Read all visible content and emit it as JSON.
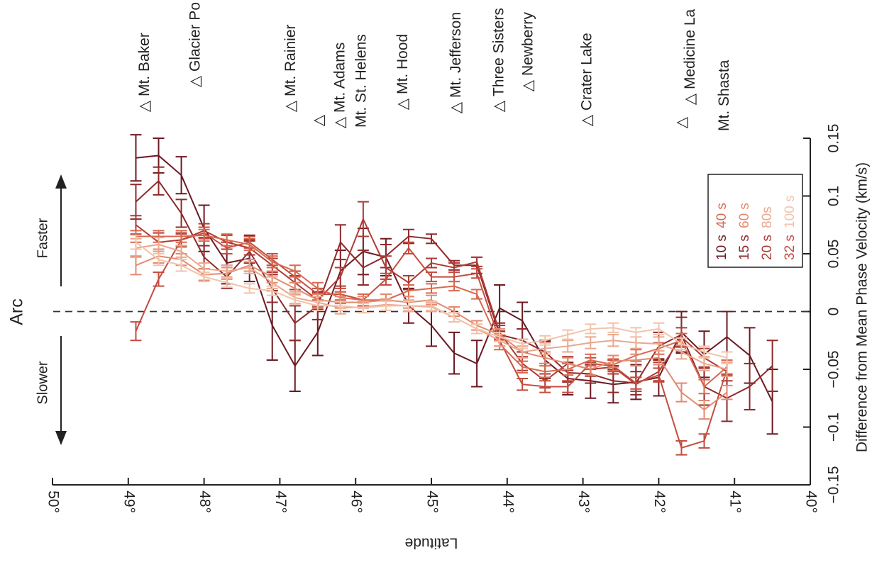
{
  "chart_data": {
    "type": "line",
    "title": "Arc",
    "xlabel": "Difference from Mean Phase Velocity (km/s)",
    "ylabel": "Latitude",
    "xlim": [
      -0.15,
      0.15
    ],
    "ylim": [
      40,
      50
    ],
    "xticks": [
      -0.15,
      -0.1,
      -0.05,
      0,
      0.05,
      0.1,
      0.15
    ],
    "xtick_labels": [
      "−0.15",
      "−0.1",
      "−0.05",
      "0",
      "0.05",
      "0.1",
      "0.15"
    ],
    "yticks": [
      50,
      49,
      48,
      47,
      46,
      45,
      44,
      43,
      42,
      41,
      40
    ],
    "ytick_labels": [
      "50°",
      "49°",
      "48°",
      "47°",
      "46°",
      "45°",
      "44°",
      "43°",
      "42°",
      "41°",
      "40°"
    ],
    "grid": false,
    "legend_position": "top-right",
    "faster_label": "Faster",
    "slower_label": "Slower",
    "zero_line": "dashed",
    "volcanoes": [
      {
        "name": "Mt. Baker",
        "lat": 48.78
      },
      {
        "name": "Glacier Peak",
        "lat": 48.11
      },
      {
        "name": "Mt. Rainier",
        "lat": 46.85
      },
      {
        "name": "Mt. Adams",
        "lat": 46.2
      },
      {
        "name": "Mt. St. Helens",
        "lat": 46.2
      },
      {
        "name": "Mt. Hood",
        "lat": 45.37
      },
      {
        "name": "Mt. Jefferson",
        "lat": 44.67
      },
      {
        "name": "Three Sisters",
        "lat": 44.1
      },
      {
        "name": "Newberry",
        "lat": 43.72
      },
      {
        "name": "Crater Lake",
        "lat": 42.94
      },
      {
        "name": "Medicine Lake",
        "lat": 41.58
      },
      {
        "name": "Mt. Shasta",
        "lat": 41.41
      }
    ],
    "volcano_labels_printed": [
      "Mt. Baker",
      "Glacier Po",
      "Mt. Rainier",
      "Mt. Adams",
      "Mt. St. Helens",
      "Mt. Hood",
      "Mt. Jefferson",
      "Three Sisters",
      "Newberry",
      "Crater Lake",
      "Medicine La",
      "Mt. Shasta"
    ],
    "legend_rows": [
      {
        "left": "10 s",
        "right": "40 s",
        "left_color": "#6b1a22",
        "right_color": "#d9694f"
      },
      {
        "left": "15 s",
        "right": "60 s",
        "left_color": "#8e2a2c",
        "right_color": "#e48a6f"
      },
      {
        "left": "20 s",
        "right": "80s",
        "left_color": "#ad3b36",
        "right_color": "#eba78c"
      },
      {
        "left": "32 s",
        "right": "100 s",
        "left_color": "#c54c3f",
        "right_color": "#f2c3ac"
      }
    ],
    "series": [
      {
        "name": "10 s",
        "color": "#6b1a22",
        "lat": [
          48.9,
          48.6,
          48.3,
          48.0,
          47.7,
          47.4,
          47.1,
          46.8,
          46.5,
          46.2,
          45.9,
          45.6,
          45.3,
          45.0,
          44.7,
          44.4,
          44.1,
          43.8,
          43.5,
          43.2,
          42.9,
          42.6,
          42.3,
          42.0,
          41.7,
          41.4,
          41.1,
          40.8,
          40.5
        ],
        "values": [
          0.133,
          0.135,
          0.118,
          0.072,
          0.042,
          0.046,
          -0.012,
          -0.047,
          -0.018,
          0.035,
          0.052,
          0.047,
          0.005,
          -0.012,
          -0.036,
          -0.045,
          0.003,
          -0.008,
          -0.042,
          -0.058,
          -0.06,
          -0.063,
          -0.061,
          -0.057,
          -0.018,
          -0.037,
          -0.022,
          -0.038,
          -0.078
        ],
        "errors": [
          0.02,
          0.015,
          0.016,
          0.02,
          0.018,
          0.02,
          0.03,
          0.022,
          0.02,
          0.018,
          0.02,
          0.016,
          0.015,
          0.018,
          0.018,
          0.02,
          0.02,
          0.016,
          0.016,
          0.014,
          0.015,
          0.016,
          0.015,
          0.016,
          0.018,
          0.02,
          0.022,
          0.024,
          0.028
        ]
      },
      {
        "name": "15 s",
        "color": "#8e2a2c",
        "lat": [
          48.9,
          48.6,
          48.3,
          48.0,
          47.7,
          47.4,
          47.1,
          46.8,
          46.5,
          46.2,
          45.9,
          45.6,
          45.3,
          45.0,
          44.7,
          44.4,
          44.1,
          43.8,
          43.5,
          43.2,
          42.9,
          42.6,
          42.3,
          42.0,
          41.7,
          41.4,
          41.1,
          40.8,
          40.5
        ],
        "values": [
          0.095,
          0.113,
          0.085,
          0.047,
          0.03,
          0.052,
          0.02,
          -0.01,
          0.005,
          0.06,
          0.038,
          0.048,
          0.065,
          0.063,
          0.04,
          0.04,
          -0.02,
          -0.025,
          -0.035,
          -0.053,
          -0.054,
          -0.06,
          -0.062,
          -0.03,
          -0.02,
          -0.065,
          -0.075,
          -0.065,
          -0.047
        ],
        "errors": [
          0.015,
          0.012,
          0.012,
          0.01,
          0.01,
          0.01,
          0.012,
          0.015,
          0.012,
          0.015,
          0.015,
          0.01,
          0.006,
          0.004,
          0.004,
          0.007,
          0.01,
          0.01,
          0.01,
          0.008,
          0.008,
          0.01,
          0.01,
          0.012,
          0.015,
          0.016,
          0.02,
          0.02,
          0.022
        ]
      },
      {
        "name": "20 s",
        "color": "#ad3b36",
        "lat": [
          48.9,
          48.6,
          48.3,
          48.0,
          47.7,
          47.4,
          47.1,
          46.8,
          46.5,
          46.2,
          45.9,
          45.6,
          45.3,
          45.0,
          44.7,
          44.4,
          44.1,
          43.8,
          43.5,
          43.2,
          42.9,
          42.6,
          42.3,
          42.0,
          41.7,
          41.4,
          41.1
        ],
        "values": [
          0.075,
          0.06,
          0.062,
          0.07,
          0.06,
          0.055,
          0.04,
          0.025,
          0.01,
          0.03,
          0.08,
          0.038,
          0.025,
          0.042,
          0.038,
          0.043,
          -0.018,
          -0.045,
          -0.06,
          -0.045,
          -0.05,
          -0.048,
          -0.063,
          -0.052,
          -0.022,
          -0.04,
          -0.052
        ],
        "errors": [
          0.008,
          0.008,
          0.006,
          0.006,
          0.006,
          0.006,
          0.006,
          0.006,
          0.006,
          0.008,
          0.015,
          0.01,
          0.006,
          0.004,
          0.004,
          0.004,
          0.006,
          0.006,
          0.006,
          0.006,
          0.006,
          0.006,
          0.006,
          0.008,
          0.008,
          0.008,
          0.008
        ]
      },
      {
        "name": "32 s",
        "color": "#c54c3f",
        "lat": [
          48.9,
          48.6,
          48.3,
          48.0,
          47.7,
          47.4,
          47.1,
          46.8,
          46.5,
          46.2,
          45.9,
          45.6,
          45.3,
          45.0,
          44.7,
          44.4,
          44.1,
          43.8,
          43.5,
          43.2,
          42.9,
          42.6,
          42.3,
          42.0,
          41.7,
          41.4,
          41.1
        ],
        "values": [
          -0.017,
          0.028,
          0.062,
          0.068,
          0.055,
          0.06,
          0.045,
          0.03,
          0.015,
          0.015,
          0.01,
          0.028,
          0.055,
          0.03,
          0.03,
          0.033,
          -0.025,
          -0.063,
          -0.065,
          -0.065,
          -0.045,
          -0.047,
          -0.062,
          -0.055,
          -0.118,
          -0.112,
          -0.05
        ],
        "errors": [
          0.008,
          0.006,
          0.005,
          0.005,
          0.005,
          0.005,
          0.005,
          0.005,
          0.005,
          0.005,
          0.005,
          0.005,
          0.005,
          0.004,
          0.004,
          0.004,
          0.005,
          0.005,
          0.005,
          0.005,
          0.005,
          0.005,
          0.005,
          0.006,
          0.006,
          0.006,
          0.006
        ]
      },
      {
        "name": "40 s",
        "color": "#d9694f",
        "lat": [
          48.9,
          48.6,
          48.3,
          48.0,
          47.7,
          47.4,
          47.1,
          46.8,
          46.5,
          46.2,
          45.9,
          45.6,
          45.3,
          45.0,
          44.7,
          44.4,
          44.1,
          43.8,
          43.5,
          43.2,
          42.9,
          42.6,
          42.3,
          42.0,
          41.7,
          41.4,
          41.1
        ],
        "values": [
          0.065,
          0.065,
          0.065,
          0.066,
          0.062,
          0.058,
          0.043,
          0.035,
          0.02,
          0.012,
          0.01,
          0.01,
          0.018,
          0.02,
          0.022,
          0.015,
          -0.028,
          -0.048,
          -0.052,
          -0.05,
          -0.042,
          -0.046,
          -0.038,
          -0.032,
          -0.025,
          -0.065,
          -0.048
        ],
        "errors": [
          0.005,
          0.005,
          0.005,
          0.005,
          0.005,
          0.005,
          0.005,
          0.005,
          0.005,
          0.005,
          0.005,
          0.005,
          0.005,
          0.004,
          0.004,
          0.004,
          0.005,
          0.005,
          0.005,
          0.005,
          0.005,
          0.005,
          0.005,
          0.005,
          0.006,
          0.006,
          0.006
        ]
      },
      {
        "name": "60 s",
        "color": "#e48a6f",
        "lat": [
          48.9,
          48.6,
          48.3,
          48.0,
          47.7,
          47.4,
          47.1,
          46.8,
          46.5,
          46.2,
          45.9,
          45.6,
          45.3,
          45.0,
          44.7,
          44.4,
          44.1,
          43.8,
          43.5,
          43.2,
          42.9,
          42.6,
          42.3,
          42.0,
          41.7,
          41.4,
          41.1
        ],
        "values": [
          0.04,
          0.048,
          0.045,
          0.032,
          0.033,
          0.04,
          0.03,
          0.02,
          0.01,
          0.008,
          0.008,
          0.01,
          0.008,
          0.01,
          0.0,
          -0.012,
          -0.02,
          -0.035,
          -0.04,
          -0.045,
          -0.05,
          -0.043,
          -0.042,
          -0.04,
          -0.07,
          -0.085,
          -0.07
        ],
        "errors": [
          0.008,
          0.006,
          0.005,
          0.005,
          0.005,
          0.005,
          0.005,
          0.005,
          0.005,
          0.005,
          0.005,
          0.005,
          0.005,
          0.004,
          0.004,
          0.004,
          0.005,
          0.005,
          0.005,
          0.005,
          0.005,
          0.005,
          0.005,
          0.006,
          0.008,
          0.008,
          0.006
        ]
      },
      {
        "name": "80s",
        "color": "#eba78c",
        "lat": [
          48.9,
          48.6,
          48.3,
          48.0,
          47.7,
          47.4,
          47.1,
          46.8,
          46.5,
          46.2,
          45.9,
          45.6,
          45.3,
          45.0,
          44.7,
          44.4,
          44.1,
          43.8,
          43.5,
          43.2,
          42.9,
          42.6,
          42.3,
          42.0,
          41.7,
          41.4,
          41.1
        ],
        "values": [
          0.055,
          0.058,
          0.052,
          0.037,
          0.035,
          0.038,
          0.025,
          0.012,
          0.008,
          0.003,
          0.004,
          0.006,
          0.005,
          0.004,
          -0.005,
          -0.015,
          -0.025,
          -0.035,
          -0.032,
          -0.03,
          -0.027,
          -0.025,
          -0.027,
          -0.028,
          -0.035,
          -0.045,
          -0.05
        ],
        "errors": [
          0.008,
          0.006,
          0.005,
          0.005,
          0.005,
          0.005,
          0.005,
          0.005,
          0.005,
          0.005,
          0.005,
          0.005,
          0.005,
          0.004,
          0.004,
          0.004,
          0.005,
          0.005,
          0.005,
          0.005,
          0.005,
          0.005,
          0.005,
          0.006,
          0.006,
          0.006,
          0.006
        ]
      },
      {
        "name": "100 s",
        "color": "#f2c3ac",
        "lat": [
          48.9,
          48.6,
          48.3,
          48.0,
          47.7,
          47.4,
          47.1,
          46.8,
          46.5,
          46.2,
          45.9,
          45.6,
          45.3,
          45.0,
          44.7,
          44.4,
          44.1,
          43.8,
          43.5,
          43.2,
          42.9,
          42.6,
          42.3,
          42.0,
          41.7,
          41.4,
          41.1
        ],
        "values": [
          0.06,
          0.045,
          0.04,
          0.03,
          0.025,
          0.02,
          0.018,
          0.01,
          0.005,
          0.005,
          0.003,
          0.005,
          0.005,
          0.005,
          -0.005,
          -0.015,
          -0.022,
          -0.028,
          -0.025,
          -0.02,
          -0.015,
          -0.014,
          -0.018,
          -0.015,
          -0.028,
          -0.035,
          -0.04
        ],
        "errors": [
          0.006,
          0.005,
          0.005,
          0.004,
          0.004,
          0.004,
          0.004,
          0.004,
          0.004,
          0.004,
          0.004,
          0.004,
          0.004,
          0.004,
          0.004,
          0.004,
          0.004,
          0.004,
          0.004,
          0.004,
          0.004,
          0.004,
          0.004,
          0.005,
          0.005,
          0.005,
          0.005
        ]
      }
    ]
  }
}
